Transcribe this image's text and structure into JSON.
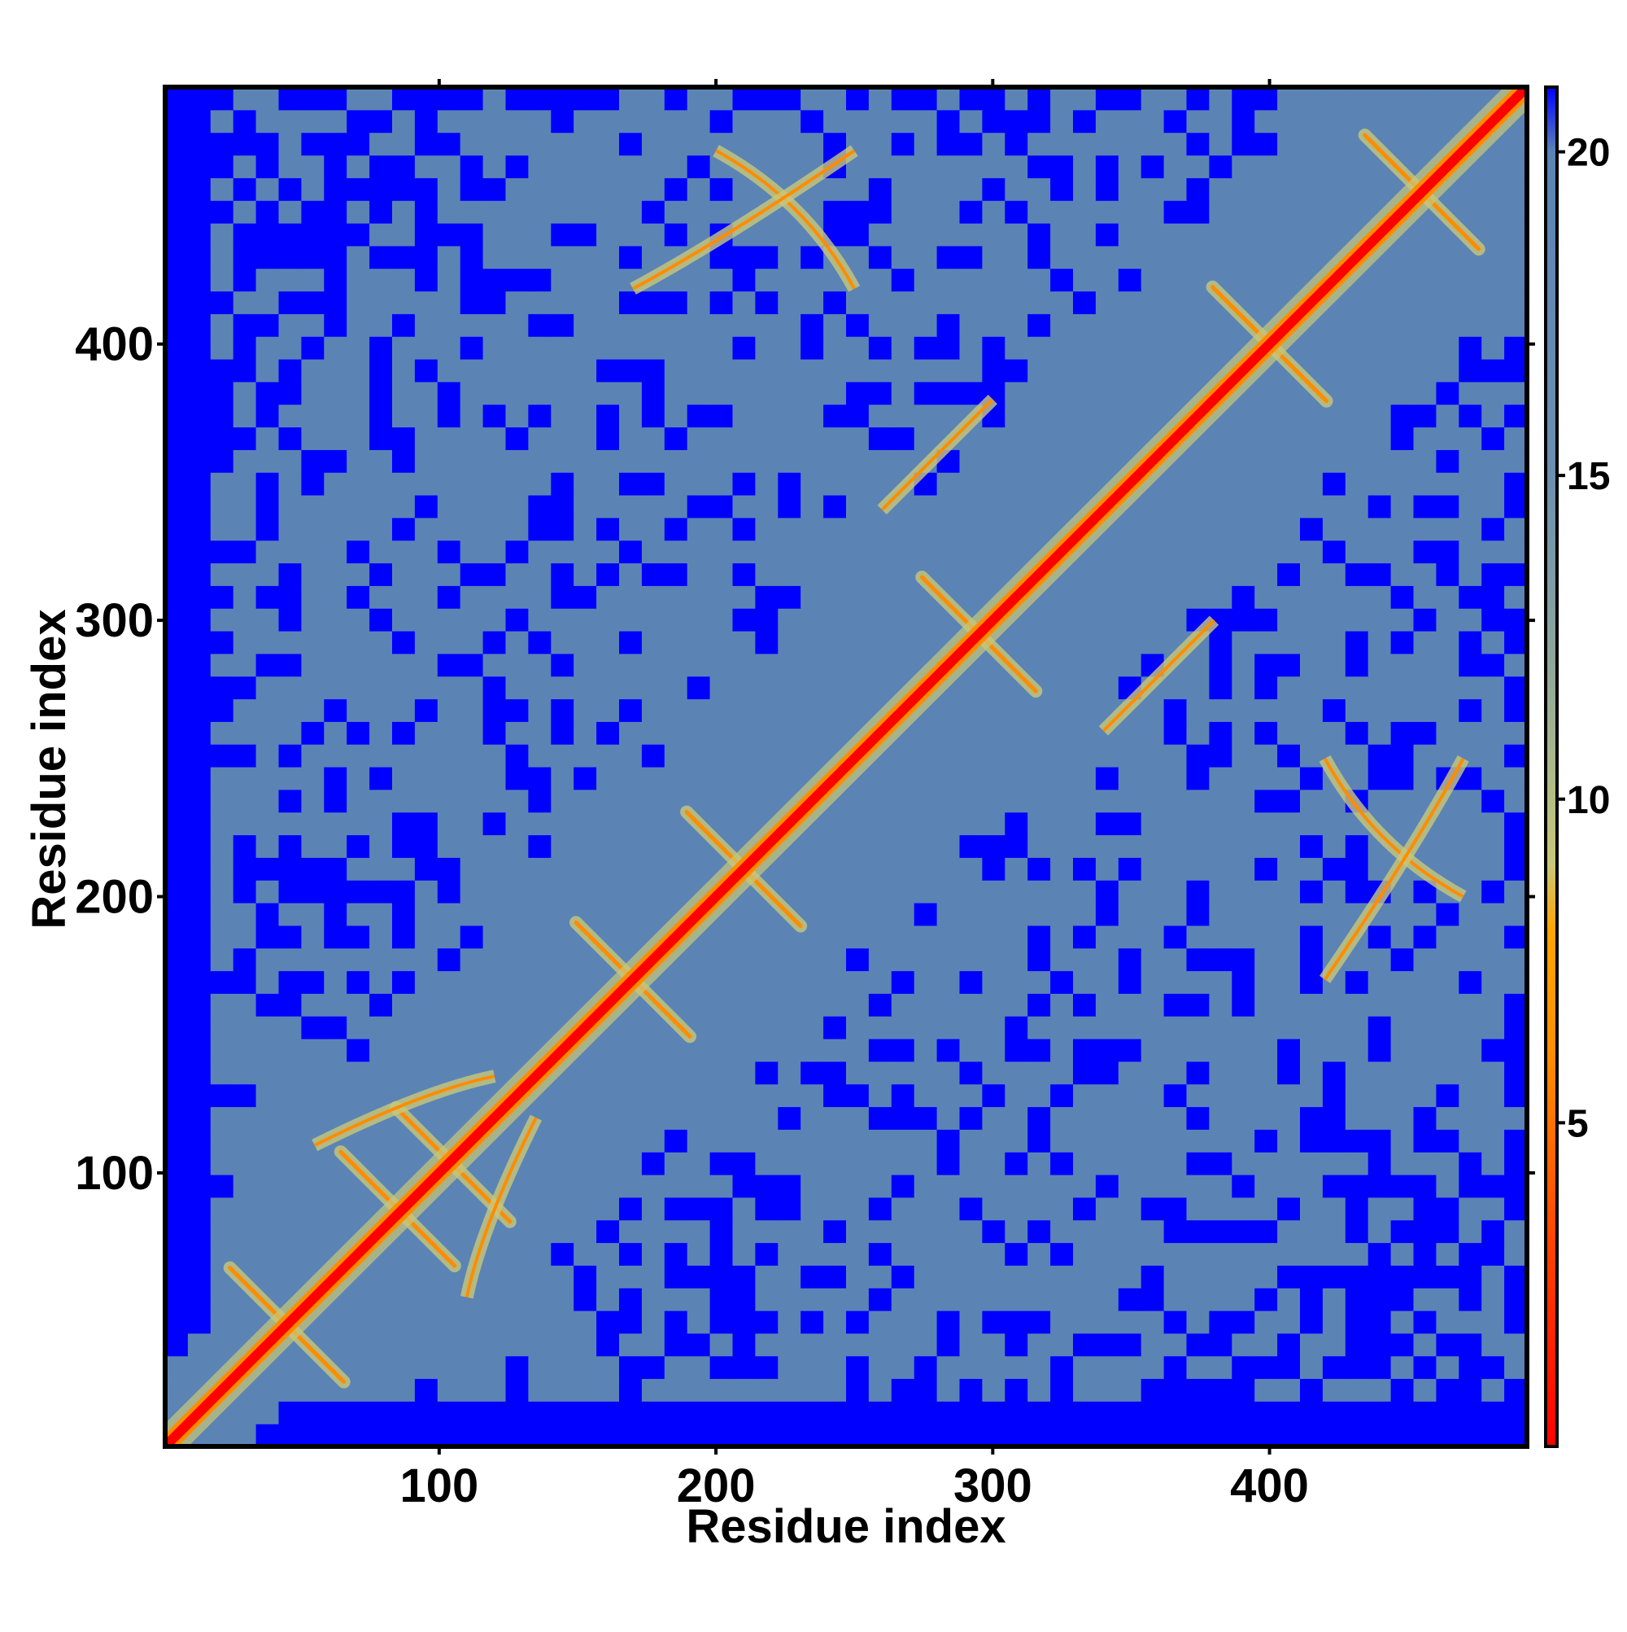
{
  "chart_data": {
    "type": "heatmap",
    "title": "",
    "xlabel": "Residue index",
    "ylabel": "Residue index",
    "x_range": [
      1,
      493
    ],
    "y_range": [
      1,
      493
    ],
    "x_ticks": [
      100,
      200,
      300,
      400
    ],
    "y_ticks": [
      100,
      200,
      300,
      400
    ],
    "matrix": "symmetric residue-residue distance map; minimum along the diagonal",
    "colorbar": {
      "range": [
        0,
        21
      ],
      "ticks": [
        5,
        10,
        15,
        20
      ],
      "colors": [
        {
          "value": 0,
          "color": "#ff0000"
        },
        {
          "value": 3,
          "color": "#ff4000"
        },
        {
          "value": 6,
          "color": "#ff8c00"
        },
        {
          "value": 8,
          "color": "#ffa500"
        },
        {
          "value": 9,
          "color": "#c8c87a"
        },
        {
          "value": 12,
          "color": "#8fa89a"
        },
        {
          "value": 15,
          "color": "#6b8fb0"
        },
        {
          "value": 20,
          "color": "#5b84b5"
        },
        {
          "value": 21,
          "color": "#0000ff"
        }
      ]
    },
    "features": {
      "diagonal_band": {
        "start": 1,
        "end": 493,
        "color": "#ff0000"
      },
      "contact_crosses": [
        {
          "x": 45,
          "y": 45
        },
        {
          "x": 85,
          "y": 87
        },
        {
          "x": 105,
          "y": 103
        },
        {
          "x": 170,
          "y": 170
        },
        {
          "x": 210,
          "y": 210
        },
        {
          "x": 295,
          "y": 295
        },
        {
          "x": 400,
          "y": 400
        },
        {
          "x": 455,
          "y": 455
        }
      ],
      "off_diagonal_arcs": [
        {
          "from": [
            55,
            110
          ],
          "to": [
            120,
            135
          ]
        },
        {
          "from": [
            200,
            470
          ],
          "to": [
            250,
            420
          ]
        },
        {
          "from": [
            420,
            170
          ],
          "to": [
            470,
            250
          ]
        },
        {
          "from": [
            340,
            260
          ],
          "to": [
            380,
            300
          ]
        }
      ],
      "background_color": "#0000ff",
      "mid_range_color": "#5b84b5"
    },
    "grid": false,
    "legend": "colorbar right"
  }
}
